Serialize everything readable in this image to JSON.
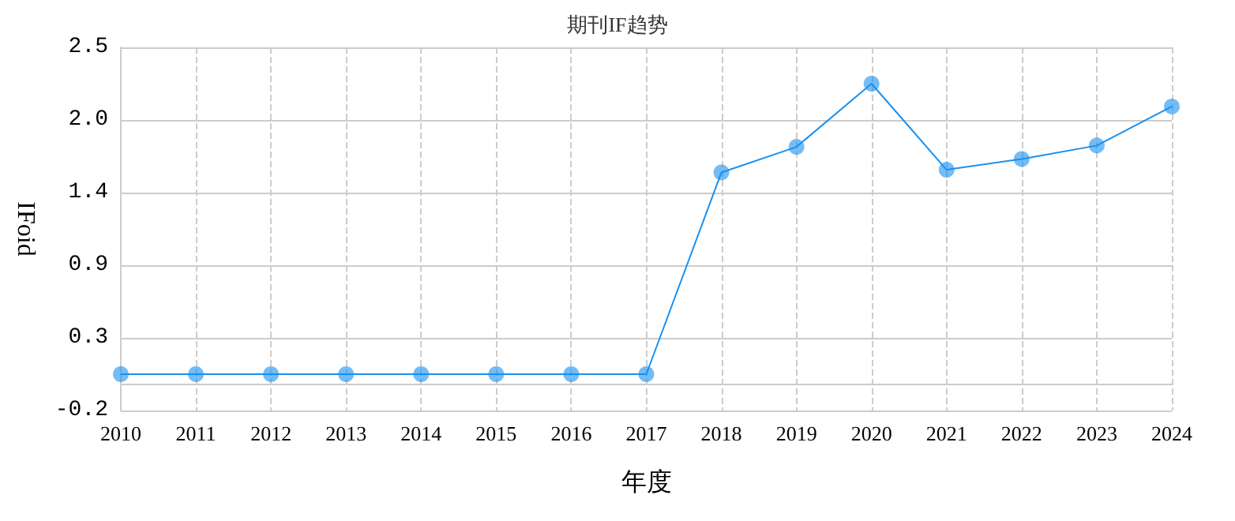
{
  "chart_data": {
    "type": "line",
    "title": "期刊IF趋势",
    "xlabel": "年度",
    "ylabel": "IFoid",
    "categories": [
      "2010",
      "2011",
      "2012",
      "2013",
      "2014",
      "2015",
      "2016",
      "2017",
      "2018",
      "2019",
      "2020",
      "2021",
      "2022",
      "2023",
      "2024"
    ],
    "series": [
      {
        "color": "#1890f0",
        "values": [
          0.07,
          0.07,
          0.07,
          0.07,
          0.07,
          0.07,
          0.07,
          0.07,
          1.57,
          1.76,
          2.23,
          1.59,
          1.67,
          1.77,
          2.06
        ]
      }
    ],
    "ylim": [
      -0.2,
      2.5
    ],
    "yticks": [
      -0.2,
      {
        "value": 0.34,
        "label": "0.3"
      },
      {
        "value": 0.88,
        "label": "0.9"
      },
      {
        "value": 1.42,
        "label": "1.4"
      },
      {
        "value": 1.96,
        "label": "2.0"
      },
      2.5
    ],
    "grid": true,
    "marker": "circle",
    "line_style": "solid"
  }
}
